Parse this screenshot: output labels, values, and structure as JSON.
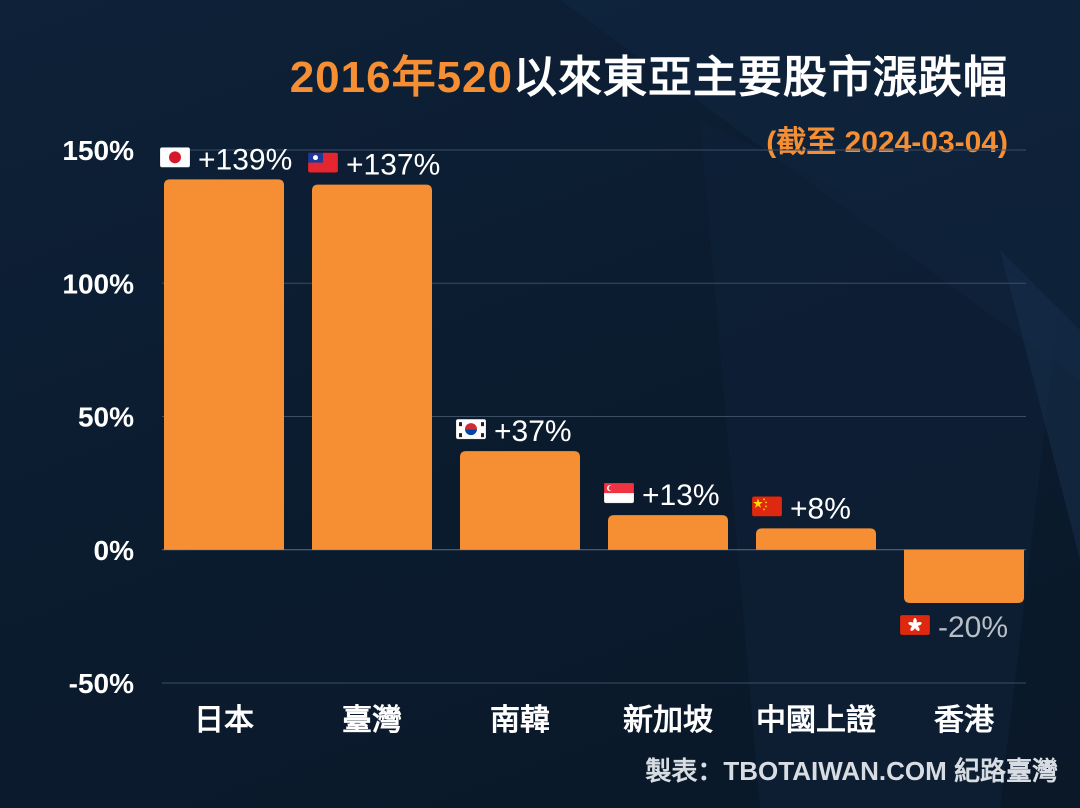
{
  "title": {
    "highlight": "2016年520",
    "rest": "以來東亞主要股市漲跌幅"
  },
  "subtitle": "(截至 2024-03-04)",
  "credit": "製表：TBOTAIWAN.COM 紀路臺灣",
  "colors": {
    "bar": "#f68f34",
    "positive_label": "#ffffff",
    "negative_label": "#b8bec6",
    "grid": "#3a4d63",
    "background": "#0c1c30"
  },
  "chart_data": {
    "type": "bar",
    "categories": [
      "日本",
      "臺灣",
      "南韓",
      "新加坡",
      "中國上證",
      "香港"
    ],
    "values": [
      139,
      137,
      37,
      13,
      8,
      -20
    ],
    "data_labels": [
      "+139%",
      "+137%",
      "+37%",
      "+13%",
      "+8%",
      "-20%"
    ],
    "flags": [
      "japan-flag-icon",
      "taiwan-flag-icon",
      "south-korea-flag-icon",
      "singapore-flag-icon",
      "china-flag-icon",
      "hong-kong-flag-icon"
    ],
    "ylim": [
      -50,
      150
    ],
    "yticks": [
      150,
      100,
      50,
      0,
      -50
    ],
    "ytick_labels": [
      "150%",
      "100%",
      "50%",
      "0%",
      "-50%"
    ],
    "grid": true,
    "xlabel": "",
    "ylabel": ""
  }
}
